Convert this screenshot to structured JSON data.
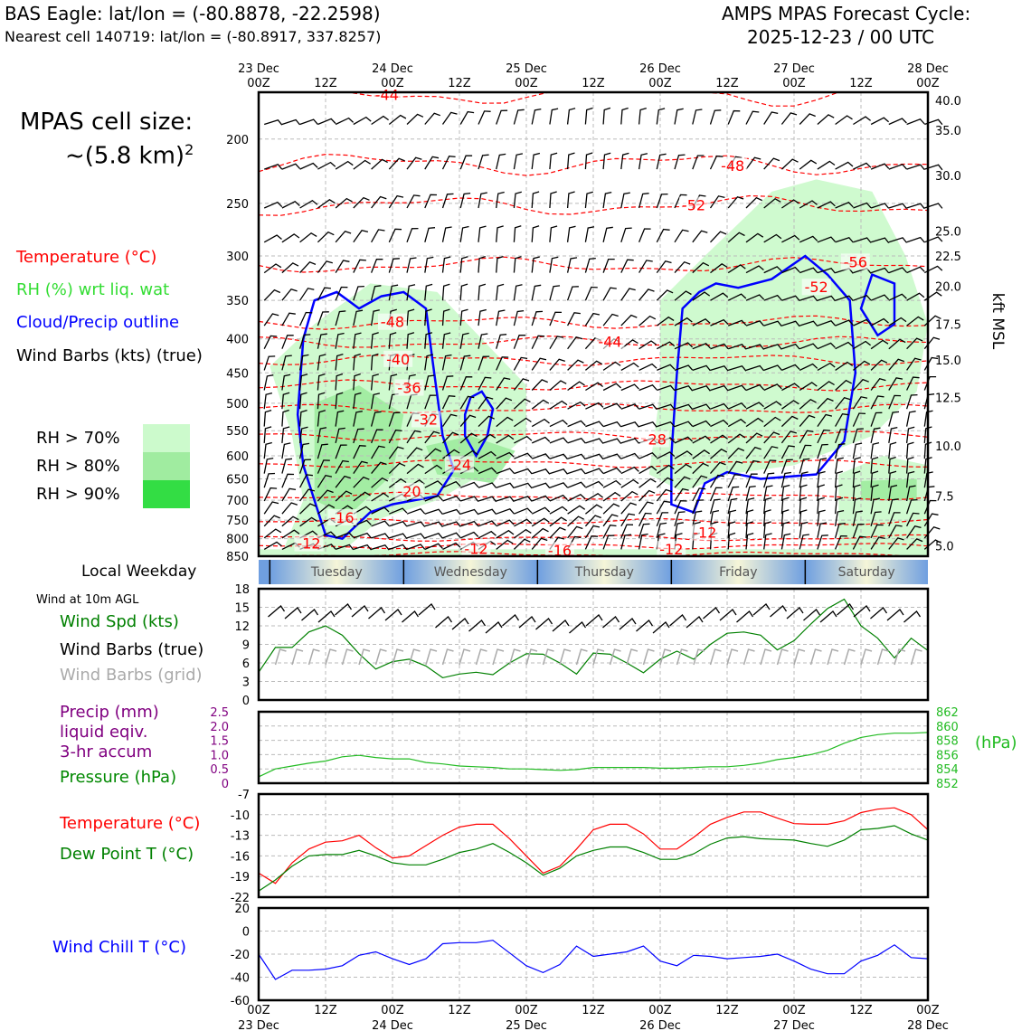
{
  "header": {
    "title_left": "BAS Eagle: lat/lon = (-80.8878, -22.2598)",
    "subtitle_left": "Nearest cell 140719: lat/lon = (-80.8917, 337.8257)",
    "title_right_1": "AMPS MPAS Forecast Cycle:",
    "title_right_2": "2025-12-23 / 00 UTC"
  },
  "sidebar": {
    "cell_size_1": "MPAS cell size:",
    "cell_size_2": "~(5.8 km)",
    "cell_size_sup": "2",
    "legend_temperature": "Temperature (°C)",
    "legend_rh": "RH (%) wrt liq. wat",
    "legend_cloud": "Cloud/Precip outline",
    "legend_barbs": "Wind Barbs (kts) (true)",
    "rh70": "RH > 70%",
    "rh80": "RH > 80%",
    "rh90": "RH > 90%",
    "local_weekday": "Local Weekday",
    "wind10m": "Wind at 10m AGL",
    "wind_spd": "Wind Spd (kts)",
    "wind_barbs_true": "Wind Barbs (true)",
    "wind_barbs_grid": "Wind Barbs (grid)",
    "precip_1": "Precip (mm)",
    "precip_2": "liquid eqiv.",
    "precip_3": "3-hr accum",
    "pressure": "Pressure (hPa)",
    "temperature": "Temperature (°C)",
    "dewpoint": "Dew Point T (°C)",
    "windchill": "Wind Chill T (°C)"
  },
  "colors": {
    "temperature": "#ff0000",
    "rh": "#33dd33",
    "cloud": "#0000ff",
    "windspd": "#008000",
    "barbs_grid": "#aaaaaa",
    "precip": "#800080",
    "pressure": "#22bb22",
    "dewpoint": "#008000",
    "windchill": "#0000ff",
    "rh70": "#ccfacc",
    "rh80": "#a0eca0",
    "rh90": "#33dd44"
  },
  "time_axis": {
    "top_ticks": [
      {
        "l1": "23 Dec",
        "l2": "00Z"
      },
      {
        "l1": "",
        "l2": "12Z"
      },
      {
        "l1": "24 Dec",
        "l2": "00Z"
      },
      {
        "l1": "",
        "l2": "12Z"
      },
      {
        "l1": "25 Dec",
        "l2": "00Z"
      },
      {
        "l1": "",
        "l2": "12Z"
      },
      {
        "l1": "26 Dec",
        "l2": "00Z"
      },
      {
        "l1": "",
        "l2": "12Z"
      },
      {
        "l1": "27 Dec",
        "l2": "00Z"
      },
      {
        "l1": "",
        "l2": "12Z"
      },
      {
        "l1": "28 Dec",
        "l2": "00Z"
      }
    ],
    "weekdays": [
      "Tuesday",
      "Wednesday",
      "Thursday",
      "Friday",
      "Saturday"
    ]
  },
  "chart_data": [
    {
      "type": "contour",
      "name": "cross-section",
      "x_hours": [
        0,
        120
      ],
      "y_pressure_hpa": [
        850,
        170
      ],
      "left_ticks": [
        "200",
        "250",
        "300",
        "350",
        "400",
        "450",
        "500",
        "550",
        "600",
        "650",
        "700",
        "750",
        "800",
        "850"
      ],
      "right_ticks": [
        "40.0",
        "35.0",
        "30.0",
        "25.0",
        "22.5",
        "20.0",
        "17.5",
        "15.0",
        "12.5",
        "10.0",
        "7.5",
        "5.0"
      ],
      "right_axis_label": "kft MSL",
      "temperature_contours": [
        {
          "label": "-56",
          "p": 310
        },
        {
          "label": "-52",
          "p": 252
        },
        {
          "label": "-48",
          "p": 218
        },
        {
          "label": "-44",
          "p": 170
        },
        {
          "label": "-44",
          "p": 405
        },
        {
          "label": "-48",
          "p": 378
        },
        {
          "label": "-40",
          "p": 430
        },
        {
          "label": "-36",
          "p": 470
        },
        {
          "label": "-32",
          "p": 510
        },
        {
          "label": "-28",
          "p": 560
        },
        {
          "label": "-24",
          "p": 616
        },
        {
          "label": "-20",
          "p": 690
        },
        {
          "label": "-16",
          "p": 755
        },
        {
          "label": "-12",
          "p": 798
        },
        {
          "label": "-12",
          "p": 820
        },
        {
          "label": "-16",
          "p": 845
        }
      ],
      "temperature_labels": [
        {
          "text": "-44",
          "t": 23,
          "p": 172
        },
        {
          "text": "-48",
          "t": 85,
          "p": 220
        },
        {
          "text": "-52",
          "t": 78,
          "p": 252
        },
        {
          "text": "-56",
          "t": 107,
          "p": 307
        },
        {
          "text": "-52",
          "t": 100,
          "p": 335
        },
        {
          "text": "-48",
          "t": 24,
          "p": 378
        },
        {
          "text": "-44",
          "t": 63,
          "p": 405
        },
        {
          "text": "-40",
          "t": 25,
          "p": 430
        },
        {
          "text": "-36",
          "t": 27,
          "p": 475
        },
        {
          "text": "-32",
          "t": 30,
          "p": 530
        },
        {
          "text": "-28",
          "t": 71,
          "p": 568
        },
        {
          "text": "-24",
          "t": 36,
          "p": 620
        },
        {
          "text": "-20",
          "t": 27,
          "p": 680
        },
        {
          "text": "-16",
          "t": 15,
          "p": 745
        },
        {
          "text": "-12",
          "t": 80,
          "p": 785
        },
        {
          "text": "-12",
          "t": 9,
          "p": 815
        },
        {
          "text": "-12",
          "t": 39,
          "p": 830
        },
        {
          "text": "-16",
          "t": 54,
          "p": 835
        },
        {
          "text": "-12",
          "t": 74,
          "p": 832
        }
      ]
    },
    {
      "type": "line",
      "name": "wind-speed",
      "x_hours": [
        0,
        3,
        6,
        9,
        12,
        15,
        18,
        21,
        24,
        27,
        30,
        33,
        36,
        39,
        42,
        45,
        48,
        51,
        54,
        57,
        60,
        63,
        66,
        69,
        72,
        75,
        78,
        81,
        84,
        87,
        90,
        93,
        96,
        99,
        102,
        105,
        108,
        111,
        114,
        117,
        120
      ],
      "series": [
        {
          "name": "Wind Spd (kts)",
          "values": [
            4.5,
            8.5,
            8.5,
            11,
            12,
            10.5,
            7.5,
            5,
            6.2,
            6.6,
            5.5,
            3.6,
            4.2,
            4.5,
            4.1,
            6,
            7.5,
            7.4,
            6,
            4.2,
            7.6,
            7.4,
            6,
            4.4,
            6.6,
            7.9,
            6.6,
            9,
            10.8,
            11,
            10.5,
            8.1,
            9.6,
            12.3,
            14.8,
            16.3,
            12,
            10,
            6.8,
            10,
            8
          ]
        }
      ],
      "ylim": [
        0,
        18
      ],
      "yticks": [
        "0",
        "3",
        "6",
        "9",
        "12",
        "15",
        "18"
      ]
    },
    {
      "type": "line",
      "name": "pressure",
      "x_hours": [
        0,
        3,
        6,
        9,
        12,
        15,
        18,
        21,
        24,
        27,
        30,
        33,
        36,
        39,
        42,
        45,
        48,
        51,
        54,
        57,
        60,
        63,
        66,
        69,
        72,
        75,
        78,
        81,
        84,
        87,
        90,
        93,
        96,
        99,
        102,
        105,
        108,
        111,
        114,
        117,
        120
      ],
      "series": [
        {
          "name": "Pressure (hPa)",
          "values": [
            852.9,
            854,
            854.4,
            854.8,
            855.1,
            855.7,
            855.9,
            855.6,
            855.4,
            855.4,
            854.9,
            854.7,
            854.4,
            854.3,
            854.2,
            854,
            854,
            853.9,
            853.8,
            853.9,
            854.2,
            854.2,
            854.2,
            854.2,
            854.1,
            854.1,
            854.2,
            854.3,
            854.3,
            854.5,
            854.8,
            855.3,
            855.6,
            856,
            856.6,
            857.6,
            858.4,
            858.8,
            859,
            859,
            859.1
          ]
        }
      ],
      "left_ticks": [
        "0",
        "0.5",
        "1.0",
        "1.5",
        "2.0",
        "2.5"
      ],
      "right_ticks": [
        "852",
        "854",
        "856",
        "858",
        "860",
        "862"
      ],
      "right_label": "(hPa)",
      "ylim": [
        852,
        862
      ]
    },
    {
      "type": "line",
      "name": "temperature-dewpoint",
      "x_hours": [
        0,
        3,
        6,
        9,
        12,
        15,
        18,
        21,
        24,
        27,
        30,
        33,
        36,
        39,
        42,
        45,
        48,
        51,
        54,
        57,
        60,
        63,
        66,
        69,
        72,
        75,
        78,
        81,
        84,
        87,
        90,
        93,
        96,
        99,
        102,
        105,
        108,
        111,
        114,
        117,
        120
      ],
      "series": [
        {
          "name": "Temperature (°C)",
          "values": [
            -18.5,
            -20,
            -17,
            -15,
            -14,
            -13.8,
            -13,
            -14.8,
            -16.3,
            -16,
            -14.5,
            -13,
            -11.8,
            -11.4,
            -11.4,
            -13.5,
            -16,
            -18.5,
            -17.5,
            -15,
            -12.2,
            -11.4,
            -11.4,
            -12.8,
            -15,
            -15,
            -13.3,
            -11.4,
            -10.4,
            -9.6,
            -9.6,
            -10.5,
            -11.3,
            -11.4,
            -11.4,
            -10.9,
            -9.7,
            -9.2,
            -9,
            -10,
            -12.2
          ]
        },
        {
          "name": "Dew Point T (°C)",
          "values": [
            -21.1,
            -19.5,
            -17.5,
            -16,
            -15.8,
            -15.8,
            -15.2,
            -16,
            -17,
            -17.3,
            -17.3,
            -16.5,
            -15.5,
            -15,
            -14.2,
            -15.5,
            -17,
            -18.8,
            -17.8,
            -16,
            -15.2,
            -14.7,
            -14.7,
            -15.5,
            -16.5,
            -16.5,
            -15.7,
            -14.3,
            -13.4,
            -13.2,
            -13.5,
            -13.6,
            -13.7,
            -14.2,
            -14.6,
            -13.7,
            -12.2,
            -12,
            -11.6,
            -12.8,
            -13.7
          ]
        }
      ],
      "ylim": [
        -22,
        -7
      ],
      "yticks": [
        "-22",
        "-19",
        "-16",
        "-13",
        "-10",
        "-7"
      ]
    },
    {
      "type": "line",
      "name": "wind-chill",
      "x_hours": [
        0,
        3,
        6,
        9,
        12,
        15,
        18,
        21,
        24,
        27,
        30,
        33,
        36,
        39,
        42,
        45,
        48,
        51,
        54,
        57,
        60,
        63,
        66,
        69,
        72,
        75,
        78,
        81,
        84,
        87,
        90,
        93,
        96,
        99,
        102,
        105,
        108,
        111,
        114,
        117,
        120
      ],
      "series": [
        {
          "name": "Wind Chill T (°C)",
          "values": [
            -20,
            -42,
            -34,
            -34,
            -33,
            -30,
            -21,
            -18,
            -24,
            -29,
            -24,
            -11,
            -10,
            -10,
            -8,
            -19,
            -30,
            -36,
            -29,
            -13,
            -22,
            -20,
            -18,
            -13,
            -26,
            -30,
            -21,
            -22,
            -24,
            -23,
            -22,
            -20,
            -26,
            -33,
            -37,
            -37,
            -26,
            -21,
            -12,
            -23,
            -24
          ]
        }
      ],
      "ylim": [
        -60,
        20
      ],
      "yticks": [
        "-60",
        "-40",
        "-20",
        "0",
        "20"
      ]
    }
  ],
  "bottom_axis": {
    "ticks": [
      {
        "l1": "00Z",
        "l2": "23 Dec"
      },
      {
        "l1": "12Z",
        "l2": ""
      },
      {
        "l1": "00Z",
        "l2": "24 Dec"
      },
      {
        "l1": "12Z",
        "l2": ""
      },
      {
        "l1": "00Z",
        "l2": "25 Dec"
      },
      {
        "l1": "12Z",
        "l2": ""
      },
      {
        "l1": "00Z",
        "l2": "26 Dec"
      },
      {
        "l1": "12Z",
        "l2": ""
      },
      {
        "l1": "00Z",
        "l2": "27 Dec"
      },
      {
        "l1": "12Z",
        "l2": ""
      },
      {
        "l1": "00Z",
        "l2": "28 Dec"
      }
    ]
  }
}
